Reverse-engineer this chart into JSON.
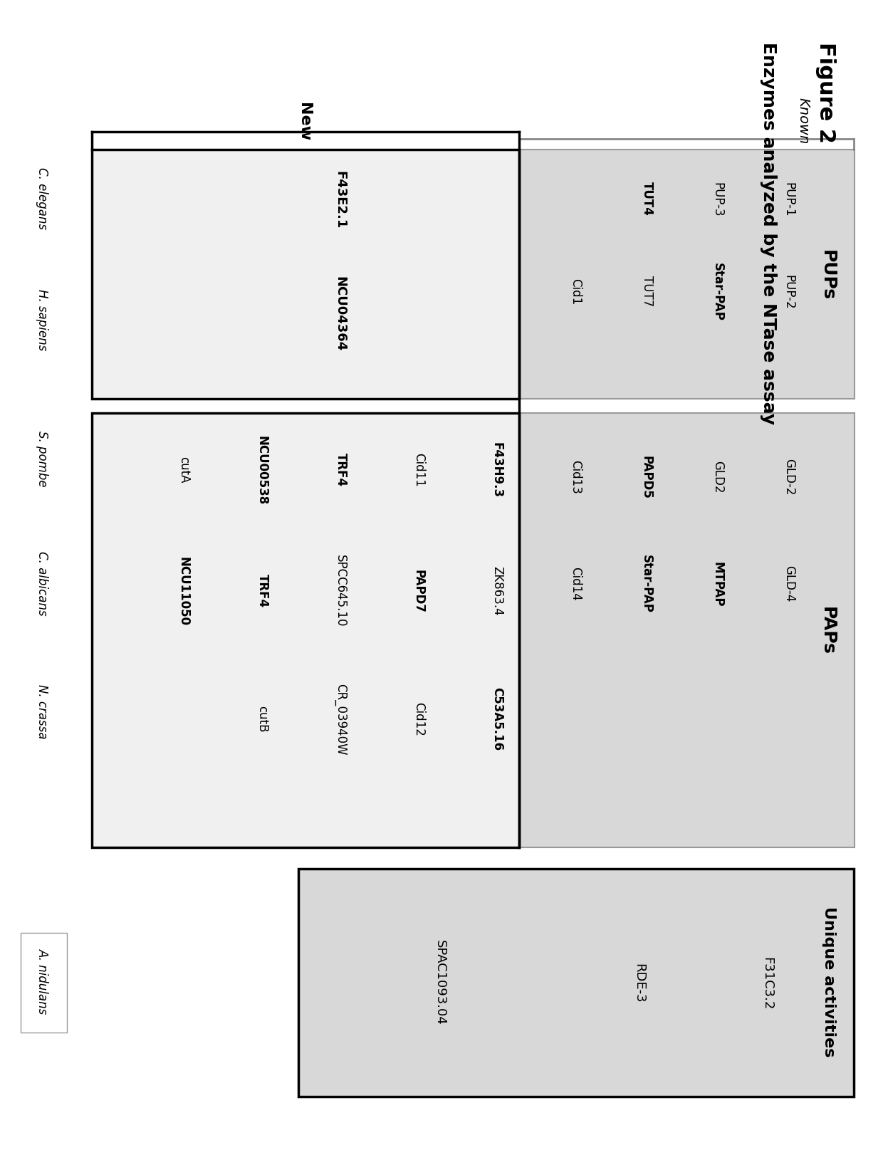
{
  "title": "Figure 2",
  "subtitle": "Enzymes analyzed by the NTase assay",
  "pups_header": "PUPs",
  "paps_header": "PAPs",
  "unique_header": "Unique activities",
  "known_label": "Known",
  "new_label": "New",
  "species_labels": [
    "C. elegans",
    "H. sapiens",
    "S. pombe",
    "C. albicans",
    "N. crassa",
    "A. nidulans"
  ],
  "pups_known_col1": [
    "PUP-1",
    "PUP-3",
    "TUT4"
  ],
  "pups_known_col2": [
    "PUP-2",
    "Star-PAP",
    "TUT7",
    "Cid1"
  ],
  "pups_new_col1": [
    "F43E2.1"
  ],
  "pups_new_col2": [
    "NCU04364"
  ],
  "paps_known_col1": [
    "GLD-2",
    "GLD2",
    "PAPD5",
    "Cid13"
  ],
  "paps_known_col2": [
    "GLD-4",
    "MTPAP",
    "Star-PAP",
    "Cid14"
  ],
  "paps_new_col1": [
    "F43H9.3",
    "Cid11",
    "TRF4",
    "NCU00538",
    "cutA"
  ],
  "paps_new_col2": [
    "ZK863.4",
    "PAPD7",
    "SPCC645.10",
    "TRF4",
    "NCU11050"
  ],
  "paps_new_col3": [
    "C53A5.16",
    "Cid12",
    "CR_03940W",
    "cutB"
  ],
  "unique_new": [
    "F31C3.2",
    "RDE-3",
    "SPAC1093.04"
  ],
  "bg_color": "#ffffff",
  "box_fill_known": "#d8d8d8",
  "box_fill_new": "#f0f0f0",
  "box_fill_unique": "#d8d8d8",
  "box_border_gray": "#999999",
  "box_border_black": "#000000",
  "bold_items": [
    "TUT4",
    "Star-PAP",
    "PAPD5",
    "MTPAP",
    "F43E2.1",
    "NCU04364",
    "F43H9.3",
    "PAPD7",
    "TRF4",
    "NCU00538",
    "NCU11050",
    "C53A5.16"
  ]
}
